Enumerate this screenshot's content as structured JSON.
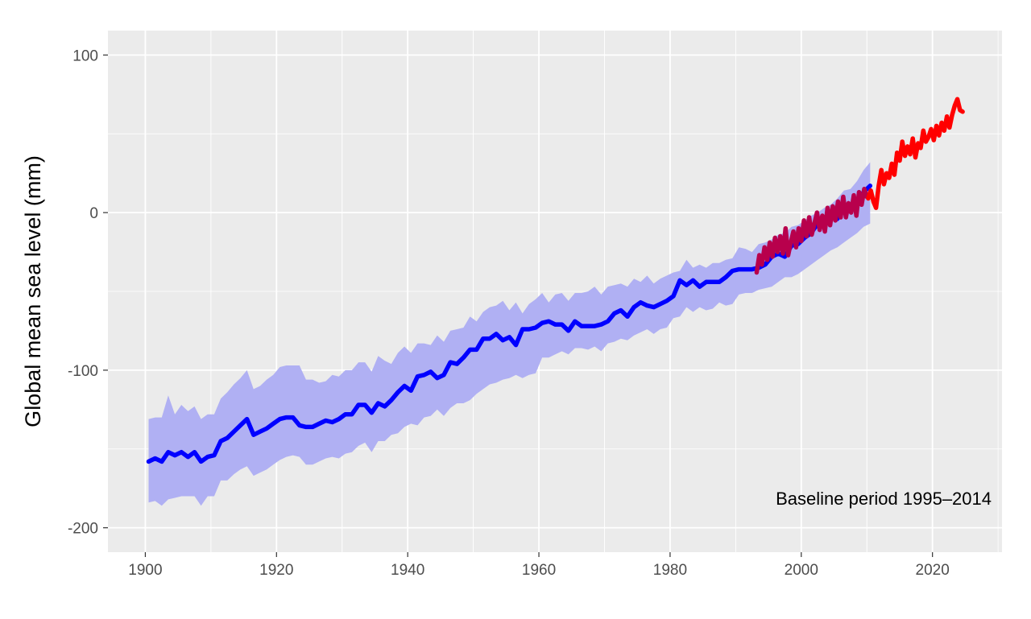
{
  "chart_data": {
    "type": "line",
    "title": "",
    "xlabel": "",
    "ylabel": "Global mean sea level (mm)",
    "xlim": [
      1894.3,
      2030.6
    ],
    "ylim": [
      -215.5,
      115.5
    ],
    "x_ticks": [
      1900,
      1920,
      1940,
      1960,
      1980,
      2000,
      2020
    ],
    "x_tick_labels": [
      "1900",
      "1920",
      "1940",
      "1960",
      "1980",
      "2000",
      "2020"
    ],
    "y_ticks": [
      -200,
      -100,
      0,
      100
    ],
    "y_tick_labels": [
      "-200",
      "-100",
      "0",
      "100"
    ],
    "grid": true,
    "legend": "none",
    "annotation": "Baseline period 1995–2014",
    "colors": {
      "panel_background": "#ebebeb",
      "gridline": "#ffffff",
      "reconstruction_line": "#0000ff",
      "uncertainty_band": "#b0b0f3",
      "tide_gauge_line": "#b8004c",
      "altimetry_line": "#ff0000"
    },
    "series": [
      {
        "kind": "band",
        "color": "#b0b0f3",
        "x": [
          1900.5,
          1901.5,
          1902.5,
          1903.5,
          1904.5,
          1905.5,
          1906.5,
          1907.5,
          1908.5,
          1909.5,
          1910.5,
          1911.5,
          1912.5,
          1913.5,
          1914.5,
          1915.5,
          1916.5,
          1917.5,
          1918.5,
          1919.5,
          1920.5,
          1921.5,
          1922.5,
          1923.5,
          1924.5,
          1925.5,
          1926.5,
          1927.5,
          1928.5,
          1929.5,
          1930.5,
          1931.5,
          1932.5,
          1933.5,
          1934.5,
          1935.5,
          1936.5,
          1937.5,
          1938.5,
          1939.5,
          1940.5,
          1941.5,
          1942.5,
          1943.5,
          1944.5,
          1945.5,
          1946.5,
          1947.5,
          1948.5,
          1949.5,
          1950.5,
          1951.5,
          1952.5,
          1953.5,
          1954.5,
          1955.5,
          1956.5,
          1957.5,
          1958.5,
          1959.5,
          1960.5,
          1961.5,
          1962.5,
          1963.5,
          1964.5,
          1965.5,
          1966.5,
          1967.5,
          1968.5,
          1969.5,
          1970.5,
          1971.5,
          1972.5,
          1973.5,
          1974.5,
          1975.5,
          1976.5,
          1977.5,
          1978.5,
          1979.5,
          1980.5,
          1981.5,
          1982.5,
          1983.5,
          1984.5,
          1985.5,
          1986.5,
          1987.5,
          1988.5,
          1989.5,
          1990.5,
          1991.5,
          1992.5,
          1993.5,
          1994.5,
          1995.5,
          1996.5,
          1997.5,
          1998.5,
          1999.5,
          2000.5,
          2001.5,
          2002.5,
          2003.5,
          2004.5,
          2005.5,
          2006.5,
          2007.5,
          2008.5,
          2009.5,
          2010.5
        ],
        "upper": [
          -131,
          -130,
          -130,
          -116,
          -128,
          -122,
          -126,
          -123,
          -131,
          -128,
          -128,
          -118,
          -114,
          -109,
          -105,
          -100,
          -112,
          -110,
          -106,
          -103,
          -98,
          -97,
          -97,
          -97,
          -106,
          -106,
          -108,
          -107,
          -103,
          -104,
          -100,
          -100,
          -95,
          -95,
          -101,
          -91,
          -94,
          -96,
          -89,
          -85,
          -89,
          -83,
          -83,
          -84,
          -78,
          -82,
          -75,
          -74,
          -73,
          -66,
          -69,
          -63,
          -60,
          -59,
          -56,
          -62,
          -57,
          -64,
          -58,
          -55,
          -51,
          -57,
          -52,
          -51,
          -56,
          -51,
          -51,
          -50,
          -47,
          -52,
          -47,
          -46,
          -45,
          -47,
          -42,
          -44,
          -40,
          -45,
          -42,
          -40,
          -38,
          -37,
          -30,
          -35,
          -33,
          -35,
          -32,
          -32,
          -30,
          -29,
          -22,
          -23,
          -25,
          -20,
          -19,
          -17,
          -14,
          -13,
          -9,
          -8,
          -5,
          -2,
          0,
          3,
          5,
          9,
          14,
          15,
          20,
          27,
          32
        ],
        "lower": [
          -184,
          -183,
          -186,
          -182,
          -181,
          -180,
          -180,
          -180,
          -186,
          -180,
          -180,
          -170,
          -170,
          -166,
          -163,
          -161,
          -167,
          -165,
          -163,
          -160,
          -157,
          -155,
          -154,
          -155,
          -160,
          -160,
          -158,
          -156,
          -155,
          -156,
          -153,
          -152,
          -148,
          -146,
          -152,
          -145,
          -145,
          -141,
          -140,
          -136,
          -134,
          -135,
          -130,
          -129,
          -125,
          -129,
          -124,
          -121,
          -121,
          -119,
          -115,
          -112,
          -109,
          -108,
          -106,
          -105,
          -103,
          -105,
          -103,
          -102,
          -92,
          -92,
          -90,
          -88,
          -90,
          -86,
          -86,
          -87,
          -85,
          -88,
          -83,
          -82,
          -80,
          -81,
          -78,
          -76,
          -74,
          -77,
          -74,
          -73,
          -67,
          -66,
          -60,
          -63,
          -60,
          -62,
          -61,
          -57,
          -59,
          -58,
          -52,
          -51,
          -51,
          -49,
          -48,
          -47,
          -44,
          -41,
          -41,
          -39,
          -36,
          -33,
          -30,
          -27,
          -24,
          -22,
          -19,
          -16,
          -13,
          -9,
          -7
        ]
      },
      {
        "kind": "line",
        "color": "#0000ff",
        "x": [
          1900.5,
          1901.5,
          1902.5,
          1903.5,
          1904.5,
          1905.5,
          1906.5,
          1907.5,
          1908.5,
          1909.5,
          1910.5,
          1911.5,
          1912.5,
          1913.5,
          1914.5,
          1915.5,
          1916.5,
          1917.5,
          1918.5,
          1919.5,
          1920.5,
          1921.5,
          1922.5,
          1923.5,
          1924.5,
          1925.5,
          1926.5,
          1927.5,
          1928.5,
          1929.5,
          1930.5,
          1931.5,
          1932.5,
          1933.5,
          1934.5,
          1935.5,
          1936.5,
          1937.5,
          1938.5,
          1939.5,
          1940.5,
          1941.5,
          1942.5,
          1943.5,
          1944.5,
          1945.5,
          1946.5,
          1947.5,
          1948.5,
          1949.5,
          1950.5,
          1951.5,
          1952.5,
          1953.5,
          1954.5,
          1955.5,
          1956.5,
          1957.5,
          1958.5,
          1959.5,
          1960.5,
          1961.5,
          1962.5,
          1963.5,
          1964.5,
          1965.5,
          1966.5,
          1967.5,
          1968.5,
          1969.5,
          1970.5,
          1971.5,
          1972.5,
          1973.5,
          1974.5,
          1975.5,
          1976.5,
          1977.5,
          1978.5,
          1979.5,
          1980.5,
          1981.5,
          1982.5,
          1983.5,
          1984.5,
          1985.5,
          1986.5,
          1987.5,
          1988.5,
          1989.5,
          1990.5,
          1991.5,
          1992.5,
          1993.5,
          1994.5,
          1995.5,
          1996.5,
          1997.5,
          1998.5,
          1999.5,
          2000.5,
          2001.5,
          2002.5,
          2003.5,
          2004.5,
          2005.5,
          2006.5,
          2007.5,
          2008.5,
          2009.5,
          2010.5
        ],
        "y": [
          -158,
          -156,
          -158,
          -152,
          -154,
          -152,
          -155,
          -152,
          -158,
          -155,
          -154,
          -145,
          -143,
          -139,
          -135,
          -131,
          -141,
          -139,
          -137,
          -134,
          -131,
          -130,
          -130,
          -135,
          -136,
          -136,
          -134,
          -132,
          -133,
          -131,
          -128,
          -128,
          -122,
          -122,
          -127,
          -121,
          -123,
          -119,
          -114,
          -110,
          -113,
          -104,
          -103,
          -101,
          -105,
          -103,
          -95,
          -96,
          -92,
          -87,
          -87,
          -80,
          -80,
          -77,
          -81,
          -79,
          -84,
          -74,
          -74,
          -73,
          -70,
          -69,
          -71,
          -71,
          -75,
          -69,
          -72,
          -72,
          -72,
          -71,
          -69,
          -64,
          -62,
          -66,
          -60,
          -57,
          -59,
          -60,
          -58,
          -56,
          -53,
          -43,
          -46,
          -43,
          -47,
          -44,
          -44,
          -44,
          -41,
          -37,
          -36,
          -36,
          -36,
          -35,
          -33,
          -28,
          -26,
          -28,
          -21,
          -20,
          -16,
          -13,
          -7,
          -9,
          -3,
          -4,
          3,
          3,
          7,
          13,
          17
        ]
      },
      {
        "kind": "line",
        "color": "#b8004c",
        "x": [
          1993.2,
          1993.6,
          1994.0,
          1994.4,
          1994.8,
          1995.2,
          1995.6,
          1996.0,
          1996.4,
          1996.8,
          1997.2,
          1997.6,
          1998.0,
          1998.4,
          1998.8,
          1999.2,
          1999.6,
          2000.0,
          2000.4,
          2000.8,
          2001.2,
          2001.6,
          2002.0,
          2002.4,
          2002.8,
          2003.2,
          2003.6,
          2004.0,
          2004.4,
          2004.8,
          2005.2,
          2005.6,
          2006.0,
          2006.4,
          2006.8,
          2007.2,
          2007.6,
          2008.0,
          2008.4,
          2008.8,
          2009.2,
          2009.6,
          2010.0
        ],
        "y": [
          -38,
          -27,
          -33,
          -22,
          -30,
          -19,
          -28,
          -16,
          -25,
          -15,
          -26,
          -10,
          -27,
          -19,
          -12,
          -22,
          -10,
          -18,
          -5,
          -15,
          -3,
          -14,
          -7,
          0,
          -11,
          -2,
          -12,
          3,
          -8,
          4,
          -5,
          7,
          -3,
          10,
          -3,
          6,
          0,
          11,
          -2,
          13,
          5,
          15,
          10
        ]
      },
      {
        "kind": "line",
        "color": "#ff0000",
        "x": [
          2010.2,
          2010.6,
          2011.0,
          2011.4,
          2011.8,
          2012.2,
          2012.6,
          2013.0,
          2013.4,
          2013.8,
          2014.2,
          2014.6,
          2015.0,
          2015.4,
          2015.8,
          2016.2,
          2016.6,
          2017.0,
          2017.4,
          2017.8,
          2018.2,
          2018.6,
          2019.0,
          2019.4,
          2019.8,
          2020.2,
          2020.6,
          2021.0,
          2021.4,
          2021.8,
          2022.2,
          2022.6,
          2023.0,
          2023.4,
          2023.8,
          2024.2,
          2024.6
        ],
        "y": [
          9,
          14,
          7,
          3,
          17,
          27,
          18,
          25,
          22,
          31,
          24,
          38,
          33,
          45,
          36,
          42,
          37,
          47,
          35,
          44,
          41,
          52,
          45,
          48,
          53,
          46,
          55,
          49,
          57,
          52,
          61,
          54,
          62,
          68,
          72,
          65,
          64
        ]
      }
    ]
  }
}
